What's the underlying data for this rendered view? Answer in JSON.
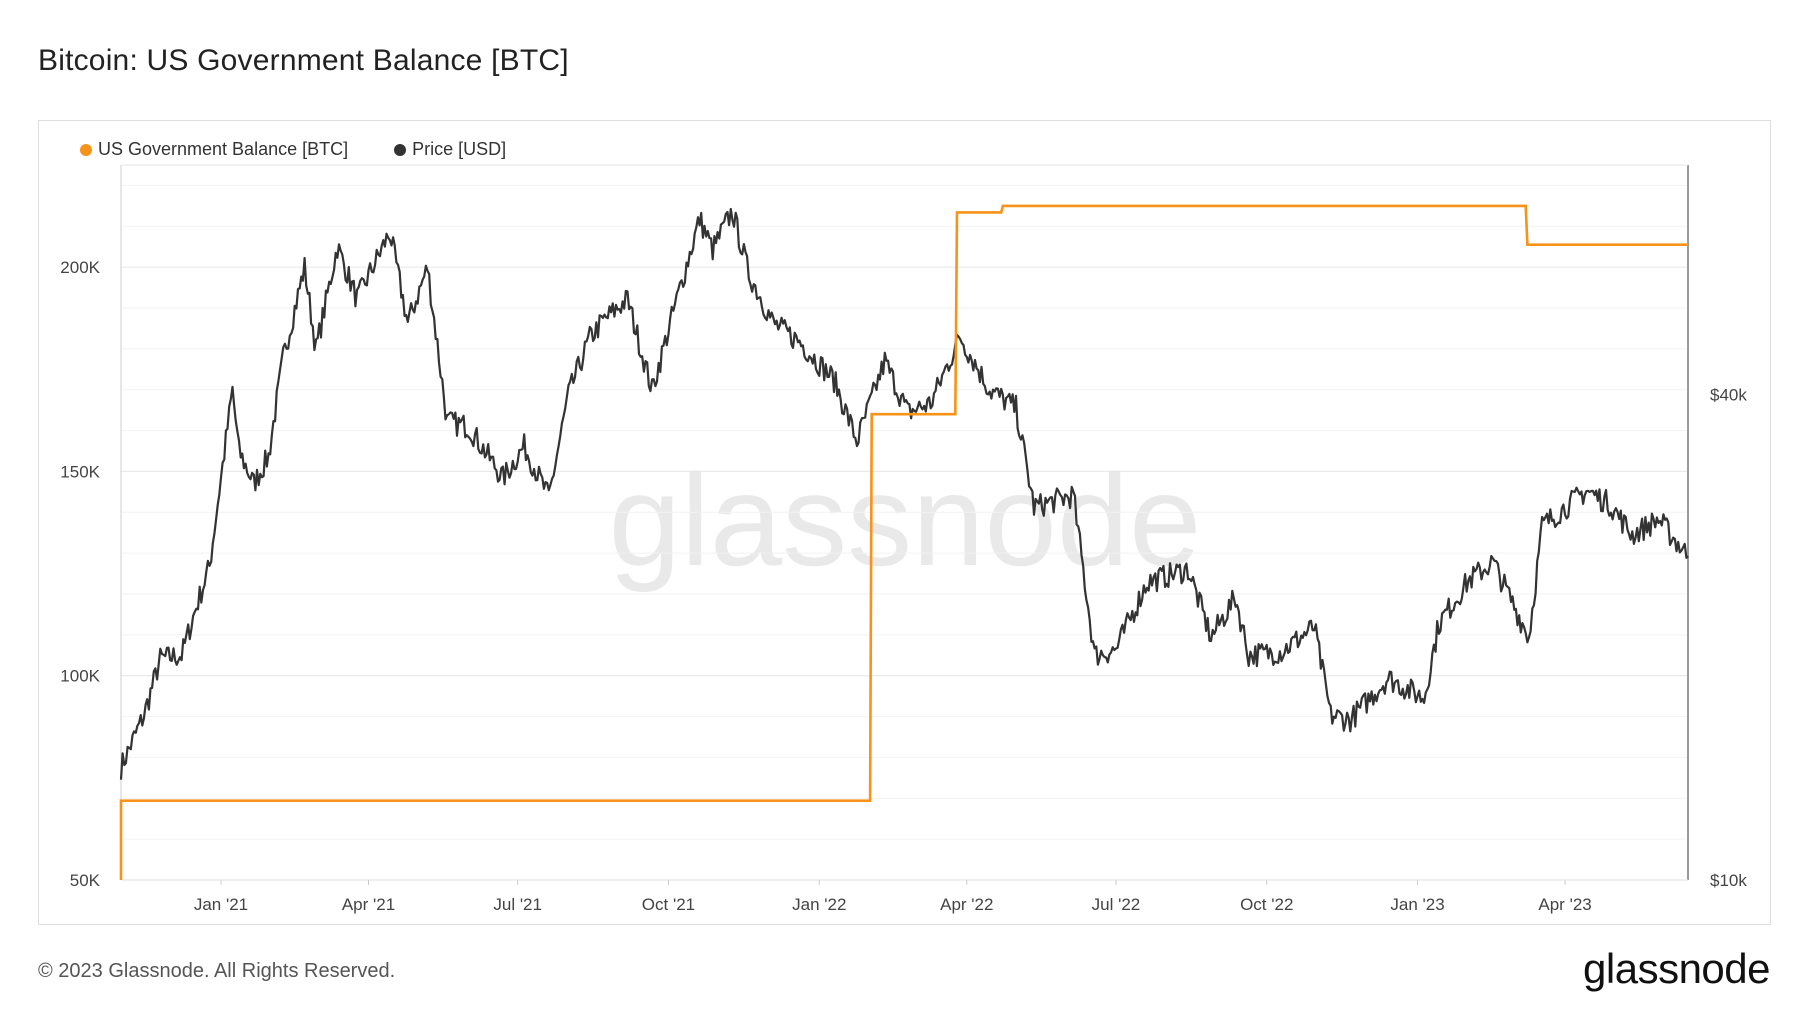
{
  "title": "Bitcoin: US Government Balance [BTC]",
  "footer": "© 2023 Glassnode. All Rights Reserved.",
  "brand": "glassnode",
  "watermark": "glassnode",
  "legend": [
    {
      "label": "US Government Balance [BTC]",
      "color": "#f7931a"
    },
    {
      "label": "Price [USD]",
      "color": "#333333"
    }
  ],
  "chart_data": {
    "type": "line",
    "x_ticks": [
      "Jan '21",
      "Apr '21",
      "Jul '21",
      "Oct '21",
      "Jan '22",
      "Apr '22",
      "Jul '22",
      "Oct '22",
      "Jan '23",
      "Apr '23"
    ],
    "x_tick_dates": [
      "2021-01-01",
      "2021-04-01",
      "2021-07-01",
      "2021-10-01",
      "2022-01-01",
      "2022-04-01",
      "2022-07-01",
      "2022-10-01",
      "2023-01-01",
      "2023-04-01"
    ],
    "x_range": [
      "2020-11-01",
      "2023-06-15"
    ],
    "y_left": {
      "ticks": [
        "50K",
        "100K",
        "150K",
        "200K"
      ],
      "tick_values": [
        50000,
        100000,
        150000,
        200000
      ],
      "range": [
        50000,
        225000
      ]
    },
    "y_right": {
      "ticks": [
        "$10k",
        "$40k"
      ],
      "tick_values": [
        10000,
        40000
      ],
      "scale": "log",
      "range": [
        10000,
        77000
      ]
    },
    "grid": true,
    "legend_position": "top-left",
    "series": [
      {
        "name": "US Government Balance [BTC]",
        "axis": "left",
        "color": "#f7931a",
        "step": true,
        "points": [
          [
            "2020-11-01",
            69400
          ],
          [
            "2022-02-01",
            69400
          ],
          [
            "2022-02-02",
            164000
          ],
          [
            "2022-03-25",
            164000
          ],
          [
            "2022-03-26",
            213400
          ],
          [
            "2022-04-22",
            213400
          ],
          [
            "2022-04-23",
            215000
          ],
          [
            "2023-03-08",
            215000
          ],
          [
            "2023-03-09",
            205500
          ],
          [
            "2023-06-15",
            205500
          ]
        ]
      },
      {
        "name": "Price [USD]",
        "axis": "right",
        "color": "#333333",
        "points": [
          [
            "2020-11-01",
            13800
          ],
          [
            "2020-11-15",
            16000
          ],
          [
            "2020-11-25",
            18800
          ],
          [
            "2020-12-08",
            19000
          ],
          [
            "2020-12-16",
            21500
          ],
          [
            "2020-12-25",
            24500
          ],
          [
            "2021-01-08",
            40500
          ],
          [
            "2021-01-12",
            34000
          ],
          [
            "2021-01-21",
            31000
          ],
          [
            "2021-01-30",
            33500
          ],
          [
            "2021-02-08",
            44500
          ],
          [
            "2021-02-21",
            57500
          ],
          [
            "2021-02-28",
            45500
          ],
          [
            "2021-03-13",
            61000
          ],
          [
            "2021-03-25",
            52500
          ],
          [
            "2021-04-14",
            63500
          ],
          [
            "2021-04-25",
            49000
          ],
          [
            "2021-05-07",
            57500
          ],
          [
            "2021-05-19",
            37000
          ],
          [
            "2021-06-01",
            36500
          ],
          [
            "2021-06-22",
            31500
          ],
          [
            "2021-07-05",
            34500
          ],
          [
            "2021-07-20",
            29800
          ],
          [
            "2021-08-01",
            40000
          ],
          [
            "2021-08-14",
            47000
          ],
          [
            "2021-08-22",
            49300
          ],
          [
            "2021-09-06",
            52500
          ],
          [
            "2021-09-21",
            40500
          ],
          [
            "2021-10-05",
            51500
          ],
          [
            "2021-10-20",
            66000
          ],
          [
            "2021-10-28",
            60500
          ],
          [
            "2021-11-09",
            67500
          ],
          [
            "2021-11-19",
            56500
          ],
          [
            "2021-12-04",
            49000
          ],
          [
            "2021-12-20",
            46500
          ],
          [
            "2022-01-10",
            41700
          ],
          [
            "2022-01-24",
            35000
          ],
          [
            "2022-02-10",
            44000
          ],
          [
            "2022-02-24",
            38000
          ],
          [
            "2022-03-10",
            39000
          ],
          [
            "2022-03-28",
            47200
          ],
          [
            "2022-04-15",
            40500
          ],
          [
            "2022-05-01",
            38500
          ],
          [
            "2022-05-12",
            29000
          ],
          [
            "2022-06-05",
            30000
          ],
          [
            "2022-06-18",
            19000
          ],
          [
            "2022-07-01",
            19300
          ],
          [
            "2022-07-20",
            23400
          ],
          [
            "2022-08-14",
            24300
          ],
          [
            "2022-08-28",
            20000
          ],
          [
            "2022-09-12",
            22400
          ],
          [
            "2022-09-20",
            19000
          ],
          [
            "2022-10-10",
            19200
          ],
          [
            "2022-10-30",
            20600
          ],
          [
            "2022-11-09",
            16000
          ],
          [
            "2022-11-21",
            15800
          ],
          [
            "2022-12-14",
            17800
          ],
          [
            "2023-01-05",
            16800
          ],
          [
            "2023-01-14",
            20800
          ],
          [
            "2023-02-01",
            23500
          ],
          [
            "2023-02-16",
            24800
          ],
          [
            "2023-03-10",
            20000
          ],
          [
            "2023-03-18",
            27500
          ],
          [
            "2023-04-14",
            30400
          ],
          [
            "2023-04-28",
            29300
          ],
          [
            "2023-05-12",
            26800
          ],
          [
            "2023-05-28",
            28000
          ],
          [
            "2023-06-15",
            25200
          ]
        ]
      }
    ]
  }
}
